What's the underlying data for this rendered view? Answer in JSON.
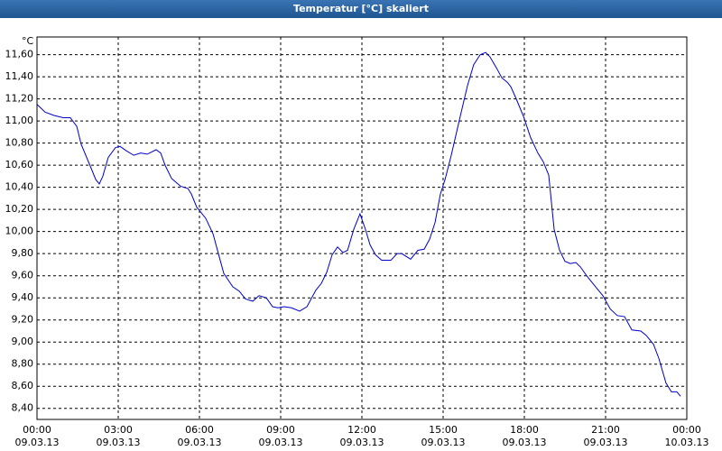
{
  "chart_data": {
    "type": "line",
    "title": "Temperatur [°C] skaliert",
    "ylabel": "°C",
    "xlim": [
      0,
      24
    ],
    "ylim": [
      8.3,
      11.76
    ],
    "grid": true,
    "xticks": [
      {
        "value": 0,
        "label": "00:00",
        "date": "09.03.13"
      },
      {
        "value": 3,
        "label": "03:00",
        "date": "09.03.13"
      },
      {
        "value": 6,
        "label": "06:00",
        "date": "09.03.13"
      },
      {
        "value": 9,
        "label": "09:00",
        "date": "09.03.13"
      },
      {
        "value": 12,
        "label": "12:00",
        "date": "09.03.13"
      },
      {
        "value": 15,
        "label": "15:00",
        "date": "09.03.13"
      },
      {
        "value": 18,
        "label": "18:00",
        "date": "09.03.13"
      },
      {
        "value": 21,
        "label": "21:00",
        "date": "09.03.13"
      },
      {
        "value": 24,
        "label": "00:00",
        "date": "10.03.13"
      }
    ],
    "yticks": [
      {
        "value": 8.4,
        "label": "8,40"
      },
      {
        "value": 8.6,
        "label": "8,60"
      },
      {
        "value": 8.8,
        "label": "8,80"
      },
      {
        "value": 9.0,
        "label": "9,00"
      },
      {
        "value": 9.2,
        "label": "9,20"
      },
      {
        "value": 9.4,
        "label": "9,40"
      },
      {
        "value": 9.6,
        "label": "9,60"
      },
      {
        "value": 9.8,
        "label": "9,80"
      },
      {
        "value": 10.0,
        "label": "10,00"
      },
      {
        "value": 10.2,
        "label": "10,20"
      },
      {
        "value": 10.4,
        "label": "10,40"
      },
      {
        "value": 10.6,
        "label": "10,60"
      },
      {
        "value": 10.8,
        "label": "10,80"
      },
      {
        "value": 11.0,
        "label": "11,00"
      },
      {
        "value": 11.2,
        "label": "11,20"
      },
      {
        "value": 11.4,
        "label": "11,40"
      },
      {
        "value": 11.6,
        "label": "11,60"
      }
    ],
    "x": [
      0,
      0.3,
      0.63,
      0.97,
      1.23,
      1.47,
      1.63,
      1.97,
      2.17,
      2.3,
      2.43,
      2.63,
      2.9,
      3.07,
      3.3,
      3.57,
      3.83,
      4.07,
      4.4,
      4.57,
      4.73,
      4.97,
      5.3,
      5.57,
      5.7,
      5.9,
      6.23,
      6.5,
      6.7,
      6.9,
      7.23,
      7.47,
      7.7,
      7.97,
      8.2,
      8.47,
      8.7,
      8.9,
      9.13,
      9.4,
      9.7,
      9.97,
      10.3,
      10.5,
      10.7,
      10.9,
      11.1,
      11.3,
      11.47,
      11.7,
      11.93,
      12.13,
      12.3,
      12.5,
      12.73,
      13.07,
      13.3,
      13.47,
      13.8,
      14.07,
      14.3,
      14.5,
      14.7,
      14.9,
      15.07,
      15.3,
      15.63,
      15.9,
      16.13,
      16.37,
      16.57,
      16.73,
      16.97,
      17.17,
      17.37,
      17.5,
      17.7,
      17.97,
      18.23,
      18.5,
      18.7,
      18.9,
      19.1,
      19.3,
      19.5,
      19.7,
      19.9,
      20.07,
      20.3,
      20.63,
      20.9,
      21.17,
      21.43,
      21.7,
      21.97,
      22.3,
      22.5,
      22.77,
      22.97,
      23.23,
      23.43,
      23.63,
      23.77
    ],
    "series": [
      {
        "color": "#0000cc",
        "values": [
          11.15,
          11.08,
          11.05,
          11.03,
          11.03,
          10.95,
          10.79,
          10.59,
          10.47,
          10.43,
          10.5,
          10.67,
          10.76,
          10.77,
          10.73,
          10.69,
          10.71,
          10.7,
          10.74,
          10.71,
          10.6,
          10.48,
          10.41,
          10.39,
          10.34,
          10.22,
          10.12,
          9.98,
          9.8,
          9.62,
          9.5,
          9.46,
          9.39,
          9.37,
          9.42,
          9.4,
          9.32,
          9.31,
          9.32,
          9.31,
          9.28,
          9.32,
          9.47,
          9.53,
          9.63,
          9.79,
          9.86,
          9.81,
          9.83,
          10.02,
          10.16,
          10.02,
          9.88,
          9.79,
          9.74,
          9.74,
          9.8,
          9.8,
          9.75,
          9.83,
          9.84,
          9.93,
          10.08,
          10.34,
          10.47,
          10.69,
          11.04,
          11.32,
          11.51,
          11.6,
          11.62,
          11.58,
          11.48,
          11.39,
          11.35,
          11.31,
          11.2,
          11.04,
          10.85,
          10.71,
          10.63,
          10.51,
          10.02,
          9.83,
          9.73,
          9.71,
          9.72,
          9.68,
          9.6,
          9.5,
          9.42,
          9.3,
          9.24,
          9.23,
          9.11,
          9.1,
          9.06,
          8.98,
          8.85,
          8.63,
          8.55,
          8.55,
          8.51
        ]
      }
    ]
  }
}
